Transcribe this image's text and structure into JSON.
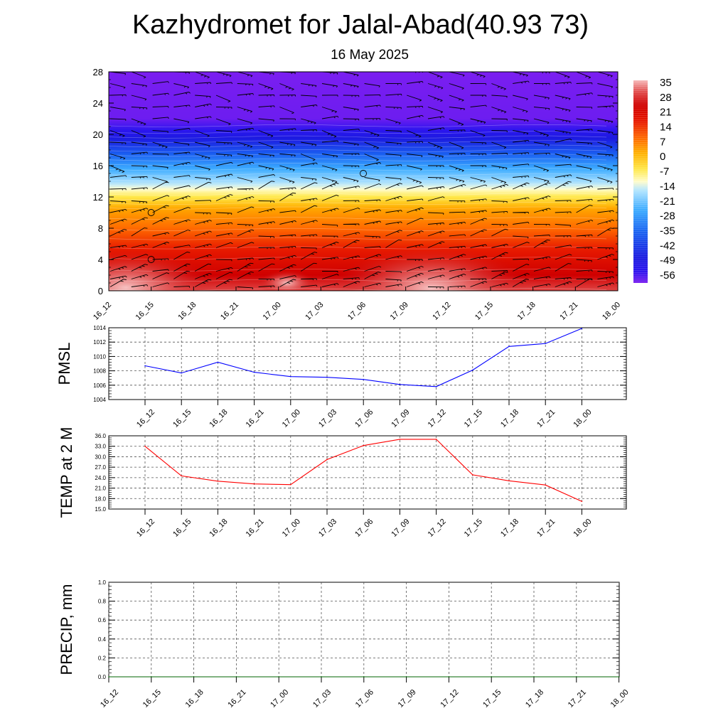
{
  "title": "Kazhydromet for Jalal-Abad(40.93 73)",
  "subtitle": "16 May 2025",
  "time_labels": [
    "16_12",
    "16_15",
    "16_18",
    "16_21",
    "17_00",
    "17_03",
    "17_06",
    "17_09",
    "17_12",
    "17_15",
    "17_18",
    "17_21",
    "18_00"
  ],
  "colors": {
    "pmsl_line": "#0000ff",
    "temp_line": "#ff0000",
    "precip_line": "#006400",
    "grid": "#555555",
    "barb": "#000000"
  },
  "chart_data": [
    {
      "id": "height-time-section",
      "type": "heatmap",
      "y_ticks": [
        0,
        4,
        8,
        12,
        16,
        20,
        24,
        28
      ],
      "ylim": [
        0,
        28
      ],
      "x_categories": [
        "16_12",
        "16_15",
        "16_18",
        "16_21",
        "17_00",
        "17_03",
        "17_06",
        "17_09",
        "17_12",
        "17_15",
        "17_18",
        "17_21",
        "18_00"
      ],
      "colorbar_ticks": [
        35,
        28,
        21,
        14,
        7,
        0,
        -7,
        -14,
        -21,
        -28,
        -35,
        -42,
        -49,
        -56
      ],
      "colorbar_range": [
        -60,
        38
      ],
      "colorbar_stops": [
        {
          "v": 38,
          "c": "#f6b8b8"
        },
        {
          "v": 32,
          "c": "#e04545"
        },
        {
          "v": 26,
          "c": "#cf0000"
        },
        {
          "v": 18,
          "c": "#e81a00"
        },
        {
          "v": 10,
          "c": "#ff6a00"
        },
        {
          "v": 3,
          "c": "#ffb000"
        },
        {
          "v": -5,
          "c": "#ffe84a"
        },
        {
          "v": -11,
          "c": "#fffccc"
        },
        {
          "v": -15,
          "c": "#b5e6ff"
        },
        {
          "v": -25,
          "c": "#3aaaff"
        },
        {
          "v": -36,
          "c": "#1a5ef0"
        },
        {
          "v": -48,
          "c": "#1c1ae0"
        },
        {
          "v": -54,
          "c": "#2b16ee"
        },
        {
          "v": -60,
          "c": "#7a1ef0"
        }
      ],
      "temperature_profile": [
        {
          "h": 0,
          "t": 32
        },
        {
          "h": 2,
          "t": 26
        },
        {
          "h": 5,
          "t": 19
        },
        {
          "h": 8,
          "t": 10
        },
        {
          "h": 10.5,
          "t": 4
        },
        {
          "h": 12.5,
          "t": -8
        },
        {
          "h": 13.5,
          "t": -14
        },
        {
          "h": 16,
          "t": -27
        },
        {
          "h": 18.5,
          "t": -42
        },
        {
          "h": 20.5,
          "t": -54
        },
        {
          "h": 22,
          "t": -59
        },
        {
          "h": 28,
          "t": -60
        }
      ],
      "warm_spots": [
        {
          "time_index": 0.4,
          "height": 0.4,
          "t": 37
        },
        {
          "time_index": 7.6,
          "height": 0.3,
          "t": 38
        },
        {
          "time_index": 4.2,
          "height": 1.0,
          "t": 30
        }
      ],
      "barb_heights": [
        0.5,
        1.5,
        2.5,
        4,
        5.5,
        7,
        8.5,
        10,
        11.5,
        13,
        14.5,
        16,
        17.5,
        19,
        20.5,
        22,
        23.5,
        25,
        26.5,
        28
      ],
      "calm_points": [
        {
          "time_index": 1,
          "height": 10
        },
        {
          "time_index": 1,
          "height": 4
        },
        {
          "time_index": 6,
          "height": 15
        }
      ]
    },
    {
      "id": "pmsl",
      "type": "line",
      "ylabel": "PMSL",
      "ylim": [
        1004,
        1014
      ],
      "y_ticks": [
        1004,
        1006,
        1008,
        1010,
        1012,
        1014
      ],
      "categories": [
        "16_12",
        "16_15",
        "16_18",
        "16_21",
        "17_00",
        "17_03",
        "17_06",
        "17_09",
        "17_12",
        "17_15",
        "17_18",
        "17_21",
        "18_00"
      ],
      "values": [
        1008.7,
        1007.7,
        1009.2,
        1007.8,
        1007.2,
        1007.1,
        1006.8,
        1006.1,
        1005.8,
        1008.1,
        1011.4,
        1011.8,
        1013.9
      ],
      "grid": true
    },
    {
      "id": "temp2m",
      "type": "line",
      "ylabel": "TEMP at 2 M",
      "ylim": [
        15,
        36
      ],
      "y_ticks": [
        "15.0",
        "18.0",
        "21.0",
        "24.0",
        "27.0",
        "30.0",
        "33.0",
        "36.0"
      ],
      "categories": [
        "16_12",
        "16_15",
        "16_18",
        "16_21",
        "17_00",
        "17_03",
        "17_06",
        "17_09",
        "17_12",
        "17_15",
        "17_18",
        "17_21",
        "18_00"
      ],
      "values": [
        33.0,
        24.5,
        23.0,
        22.2,
        22.0,
        29.2,
        33.2,
        35.0,
        35.0,
        24.8,
        23.1,
        21.9,
        17.2
      ],
      "grid": true
    },
    {
      "id": "precip",
      "type": "line",
      "ylabel": "PRECIP, mm",
      "ylim": [
        0,
        1
      ],
      "y_ticks": [
        "0.0",
        "0.2",
        "0.4",
        "0.6",
        "0.8",
        "1.0"
      ],
      "categories": [
        "16_12",
        "16_15",
        "16_18",
        "16_21",
        "17_00",
        "17_03",
        "17_06",
        "17_09",
        "17_12",
        "17_15",
        "17_18",
        "17_21",
        "18_00"
      ],
      "values": [
        0,
        0,
        0,
        0,
        0,
        0,
        0,
        0,
        0,
        0,
        0,
        0,
        0
      ],
      "grid": true
    }
  ]
}
